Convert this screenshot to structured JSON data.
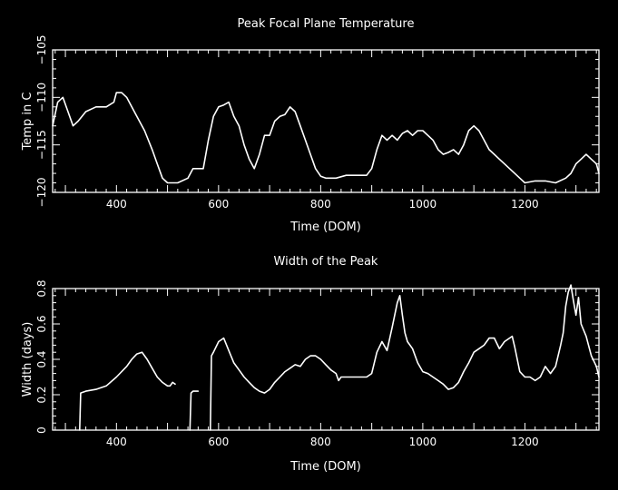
{
  "chart_data": [
    {
      "type": "line",
      "title": "Peak Focal Plane Temperature",
      "xlabel": "Time (DOM)",
      "ylabel": "Temp in C",
      "xlim": [
        275,
        1345
      ],
      "ylim": [
        -120,
        -105
      ],
      "xticks": [
        400,
        600,
        800,
        1000,
        1200
      ],
      "yticks": [
        -120,
        -115,
        -110,
        -105
      ],
      "xtick_labels": [
        "400",
        "600",
        "800",
        "1000",
        "1200"
      ],
      "ytick_labels": [
        "−120",
        "−115",
        "−110",
        "−105"
      ],
      "color": "#ffffff",
      "series": [
        {
          "x": [
            275,
            285,
            295,
            305,
            315,
            325,
            340,
            360,
            380,
            395,
            400,
            410,
            420,
            430,
            440,
            455,
            470,
            480,
            490,
            500,
            510,
            520,
            540,
            550,
            560,
            570,
            580,
            590,
            600,
            610,
            620,
            630,
            640,
            650,
            660,
            670,
            680,
            690,
            700,
            710,
            720,
            730,
            740,
            750,
            760,
            770,
            780,
            790,
            800,
            810,
            820,
            830,
            850,
            870,
            890,
            900,
            910,
            920,
            930,
            940,
            950,
            960,
            970,
            980,
            990,
            1000,
            1010,
            1020,
            1030,
            1040,
            1050,
            1060,
            1070,
            1080,
            1090,
            1100,
            1110,
            1120,
            1130,
            1140,
            1150,
            1160,
            1170,
            1180,
            1190,
            1200,
            1220,
            1240,
            1260,
            1280,
            1290,
            1300,
            1310,
            1320,
            1330,
            1340,
            1345
          ],
          "y": [
            -113,
            -110.5,
            -110,
            -111.5,
            -113,
            -112.5,
            -111.5,
            -111,
            -111,
            -110.5,
            -109.5,
            -109.5,
            -110,
            -111,
            -112,
            -113.5,
            -115.5,
            -117,
            -118.5,
            -119,
            -119,
            -119,
            -118.5,
            -117.5,
            -117.5,
            -117.5,
            -114.5,
            -112,
            -111,
            -110.8,
            -110.5,
            -112,
            -113,
            -115,
            -116.5,
            -117.5,
            -116,
            -114,
            -114,
            -112.5,
            -112,
            -111.8,
            -111,
            -111.5,
            -113,
            -114.5,
            -116,
            -117.5,
            -118.3,
            -118.5,
            -118.5,
            -118.5,
            -118.2,
            -118.2,
            -118.2,
            -117.5,
            -115.5,
            -114,
            -114.5,
            -114,
            -114.5,
            -113.8,
            -113.5,
            -114,
            -113.5,
            -113.5,
            -114,
            -114.5,
            -115.5,
            -116,
            -115.8,
            -115.5,
            -116,
            -115,
            -113.5,
            -113,
            -113.5,
            -114.5,
            -115.5,
            -116,
            -116.5,
            -117,
            -117.5,
            -118,
            -118.5,
            -119,
            -118.8,
            -118.8,
            -119,
            -118.5,
            -118,
            -117,
            -116.5,
            -116,
            -116.5,
            -117,
            -118
          ]
        }
      ]
    },
    {
      "type": "line",
      "title": "Width of the Peak",
      "xlabel": "Time (DOM)",
      "ylabel": "Width (days)",
      "xlim": [
        275,
        1345
      ],
      "ylim": [
        0,
        0.8
      ],
      "xticks": [
        400,
        600,
        800,
        1000,
        1200
      ],
      "yticks": [
        0,
        0.2,
        0.4,
        0.6,
        0.8
      ],
      "xtick_labels": [
        "400",
        "600",
        "800",
        "1000",
        "1200"
      ],
      "ytick_labels": [
        "0",
        "0.2",
        "0.4",
        "0.6",
        "0.8"
      ],
      "color": "#ffffff",
      "series": [
        {
          "x": [
            328,
            330,
            340,
            360,
            380,
            400,
            420,
            430,
            440,
            450,
            460,
            470,
            480,
            490,
            500,
            505,
            510,
            515
          ],
          "y": [
            0,
            0.21,
            0.22,
            0.23,
            0.25,
            0.3,
            0.36,
            0.4,
            0.43,
            0.44,
            0.4,
            0.35,
            0.3,
            0.27,
            0.25,
            0.25,
            0.27,
            0.26
          ]
        },
        {
          "x": [
            544,
            546,
            550,
            555,
            560
          ],
          "y": [
            0,
            0.21,
            0.22,
            0.22,
            0.22
          ]
        },
        {
          "x": [
            584,
            586,
            590,
            600,
            610,
            620,
            630,
            640,
            650,
            660,
            670,
            680,
            690,
            700,
            710,
            720,
            730,
            740,
            750,
            760,
            770,
            780,
            790,
            800,
            810,
            820,
            830,
            835,
            840,
            850,
            860,
            870,
            880,
            890,
            900,
            910,
            920,
            930,
            940,
            950,
            955,
            960,
            965,
            970,
            980,
            990,
            1000,
            1010,
            1020,
            1030,
            1040,
            1050,
            1060,
            1070,
            1080,
            1090,
            1100,
            1110,
            1120,
            1130,
            1140,
            1150,
            1160,
            1170,
            1175,
            1180,
            1185,
            1190,
            1200,
            1210,
            1220,
            1230,
            1240,
            1250,
            1260,
            1270,
            1275,
            1280,
            1285,
            1290,
            1295,
            1300,
            1305,
            1310,
            1320,
            1330,
            1340,
            1345
          ],
          "y": [
            0,
            0.42,
            0.44,
            0.5,
            0.52,
            0.45,
            0.38,
            0.34,
            0.3,
            0.27,
            0.24,
            0.22,
            0.21,
            0.23,
            0.27,
            0.3,
            0.33,
            0.35,
            0.37,
            0.36,
            0.4,
            0.42,
            0.42,
            0.4,
            0.37,
            0.34,
            0.32,
            0.28,
            0.3,
            0.3,
            0.3,
            0.3,
            0.3,
            0.3,
            0.32,
            0.44,
            0.5,
            0.45,
            0.58,
            0.72,
            0.76,
            0.65,
            0.55,
            0.5,
            0.46,
            0.38,
            0.33,
            0.32,
            0.3,
            0.28,
            0.26,
            0.23,
            0.24,
            0.27,
            0.33,
            0.38,
            0.44,
            0.46,
            0.48,
            0.52,
            0.52,
            0.46,
            0.5,
            0.52,
            0.53,
            0.47,
            0.4,
            0.33,
            0.3,
            0.3,
            0.28,
            0.3,
            0.36,
            0.32,
            0.36,
            0.48,
            0.55,
            0.7,
            0.78,
            0.82,
            0.73,
            0.65,
            0.75,
            0.6,
            0.53,
            0.42,
            0.36,
            0.3
          ]
        }
      ]
    }
  ]
}
